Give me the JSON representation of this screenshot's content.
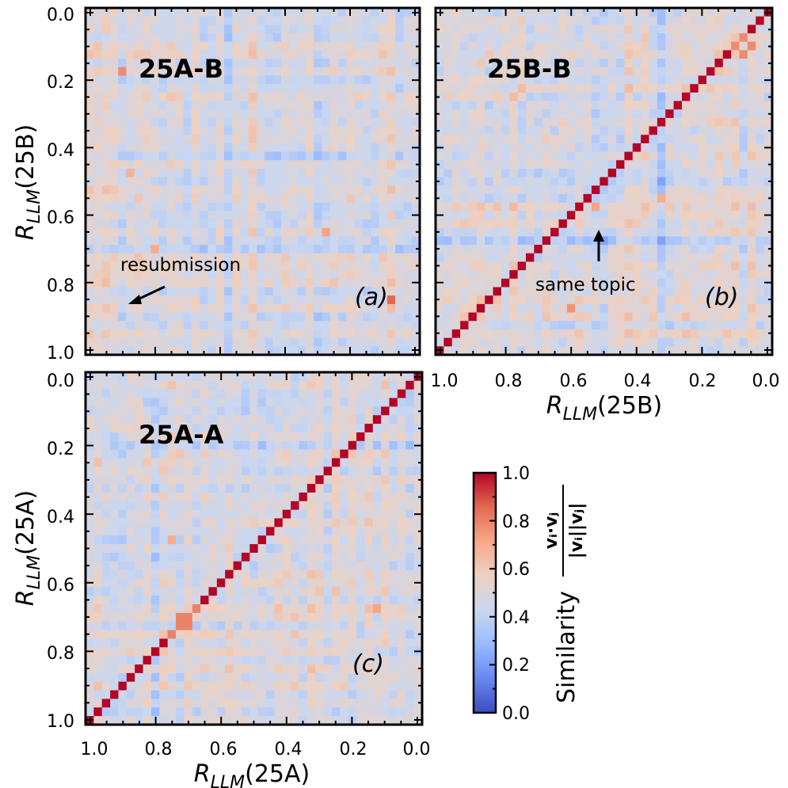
{
  "chart_data": [
    {
      "type": "heatmap",
      "panel": "a",
      "title": "25A-B",
      "panel_letter": "(a)",
      "ylabel": {
        "base": "R",
        "sub": "LLM",
        "arg": "(25B)"
      },
      "xlabel": null,
      "grid_size": 41,
      "x_range": [
        1.0,
        0.0
      ],
      "y_range": [
        0.0,
        1.0
      ],
      "y_ticks": [
        "0.0",
        "0.2",
        "0.4",
        "0.6",
        "0.8",
        "1.0"
      ],
      "x_ticks": [],
      "diagonal": false,
      "annotations": [
        {
          "text": "resubmission",
          "points_to": [
            0.9,
            0.86
          ]
        }
      ]
    },
    {
      "type": "heatmap",
      "panel": "b",
      "title": "25B-B",
      "panel_letter": "(b)",
      "xlabel": {
        "base": "R",
        "sub": "LLM",
        "arg": "(25B)"
      },
      "grid_size": 41,
      "x_range": [
        1.0,
        0.0
      ],
      "y_range": [
        0.0,
        1.0
      ],
      "x_ticks": [
        "1.0",
        "0.8",
        "0.6",
        "0.4",
        "0.2",
        "0.0"
      ],
      "y_ticks": [],
      "diagonal": true,
      "annotations": [
        {
          "text": "same topic",
          "points_to": [
            0.52,
            0.63
          ]
        }
      ]
    },
    {
      "type": "heatmap",
      "panel": "c",
      "title": "25A-A",
      "panel_letter": "(c)",
      "ylabel": {
        "base": "R",
        "sub": "LLM",
        "arg": "(25A)"
      },
      "xlabel": {
        "base": "R",
        "sub": "LLM",
        "arg": "(25A)"
      },
      "grid_size": 41,
      "x_range": [
        1.0,
        0.0
      ],
      "y_range": [
        0.0,
        1.0
      ],
      "x_ticks": [
        "1.0",
        "0.8",
        "0.6",
        "0.4",
        "0.2",
        "0.0"
      ],
      "y_ticks": [
        "0.0",
        "0.2",
        "0.4",
        "0.6",
        "0.8",
        "1.0"
      ],
      "diagonal": true,
      "annotations": []
    }
  ],
  "colorbar": {
    "label": "Similarity",
    "formula_num": "vᵢ·vⱼ",
    "formula_den": "|vᵢ||vⱼ|",
    "range": [
      0.0,
      1.0
    ],
    "ticks": [
      "0.0",
      "0.2",
      "0.4",
      "0.6",
      "0.8",
      "1.0"
    ],
    "colormap": "coolwarm",
    "colors": [
      "#3b4cc0",
      "#6788ee",
      "#9abbff",
      "#c9d7f0",
      "#edd1c2",
      "#f7a889",
      "#e26952",
      "#b40426"
    ]
  }
}
